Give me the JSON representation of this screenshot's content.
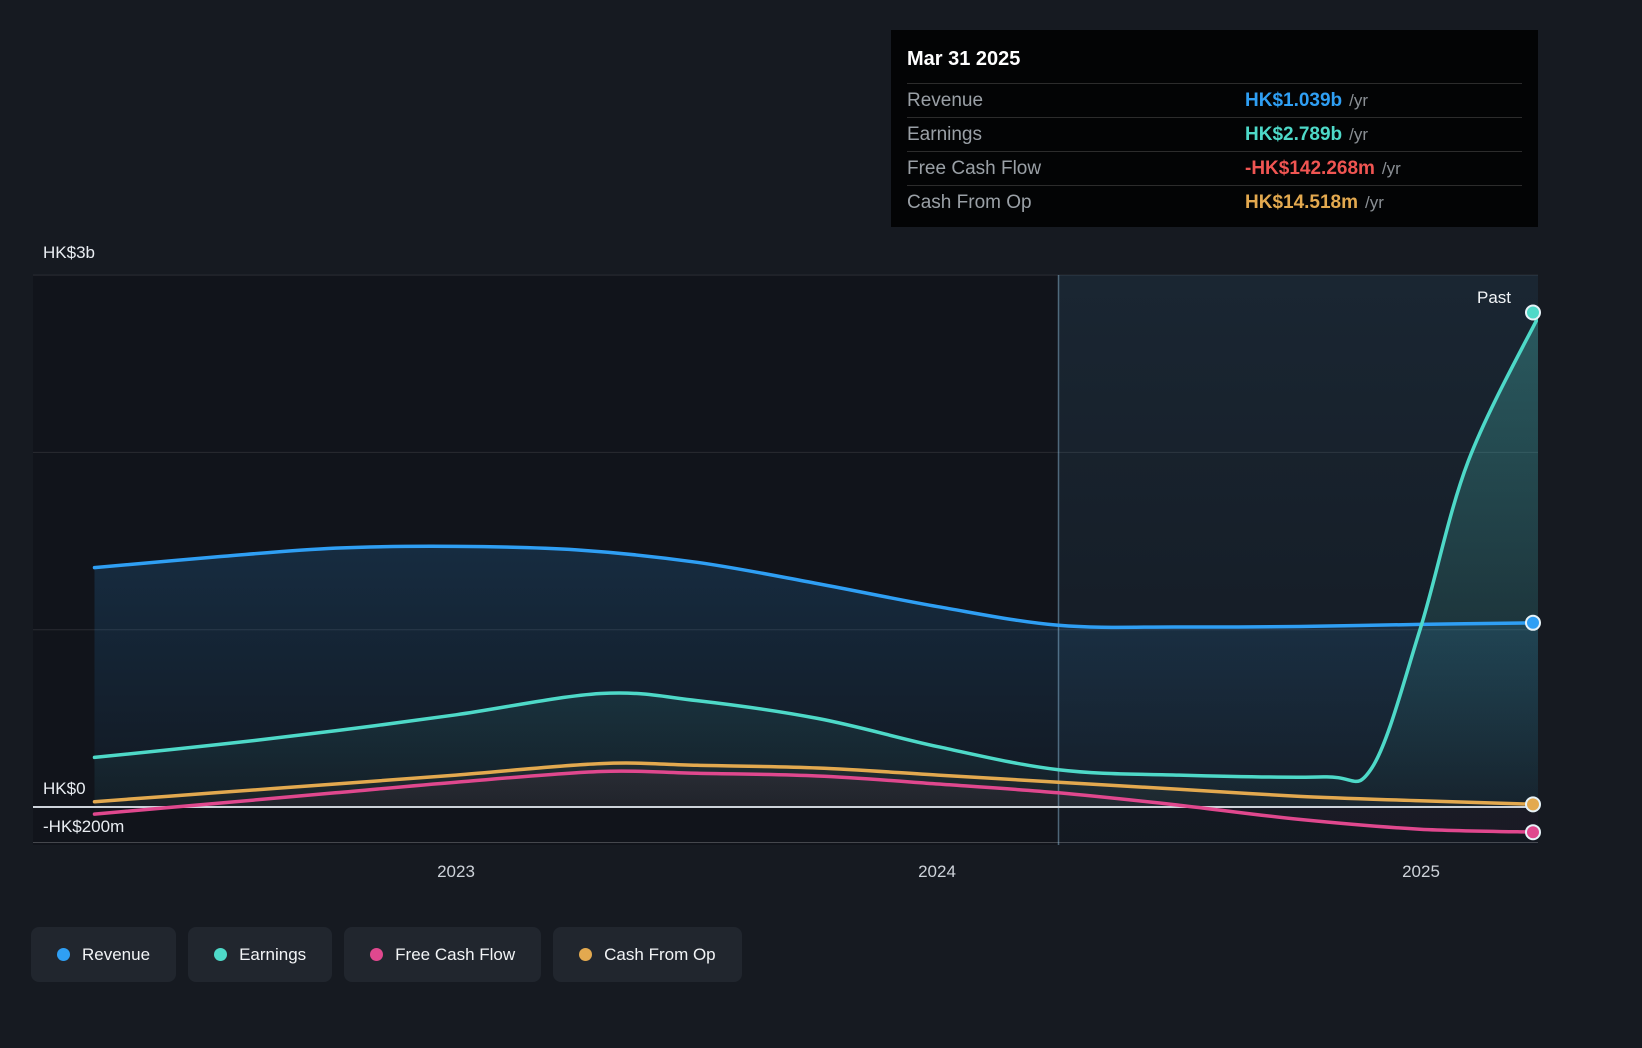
{
  "tooltip": {
    "title": "Mar 31 2025",
    "rows": [
      {
        "label": "Revenue",
        "value": "HK$1.039b",
        "unit": "/yr",
        "color": "#2f9ff4"
      },
      {
        "label": "Earnings",
        "value": "HK$2.789b",
        "unit": "/yr",
        "color": "#4ed9c8"
      },
      {
        "label": "Free Cash Flow",
        "value": "-HK$142.268m",
        "unit": "/yr",
        "color": "#f05552"
      },
      {
        "label": "Cash From Op",
        "value": "HK$14.518m",
        "unit": "/yr",
        "color": "#e3a94f"
      }
    ]
  },
  "axis": {
    "y_top": "HK$3b",
    "y_zero": "HK$0",
    "y_neg": "-HK$200m",
    "x_ticks": [
      "2023",
      "2024",
      "2025"
    ],
    "past_label": "Past"
  },
  "legend": [
    {
      "label": "Revenue",
      "color": "#2f9ff4"
    },
    {
      "label": "Earnings",
      "color": "#4ed9c8"
    },
    {
      "label": "Free Cash Flow",
      "color": "#e0488e"
    },
    {
      "label": "Cash From Op",
      "color": "#e3a94f"
    }
  ],
  "chart_data": {
    "type": "area",
    "title": "Past earnings and revenue growth (HK$, billions)",
    "x_unit": "decimal_year",
    "x_range": [
      2022.25,
      2025.25
    ],
    "ylim": [
      -0.25,
      3.0
    ],
    "y_gridlines": [
      3,
      2,
      1,
      0,
      -0.2
    ],
    "past_divider_x": 2024.25,
    "grid": true,
    "legend_position": "bottom",
    "series": [
      {
        "name": "Revenue",
        "color": "#2f9ff4",
        "points": [
          [
            2022.25,
            1.35
          ],
          [
            2022.5,
            1.41
          ],
          [
            2022.75,
            1.46
          ],
          [
            2023.0,
            1.47
          ],
          [
            2023.25,
            1.45
          ],
          [
            2023.5,
            1.38
          ],
          [
            2023.75,
            1.26
          ],
          [
            2024.0,
            1.13
          ],
          [
            2024.25,
            1.025
          ],
          [
            2024.5,
            1.015
          ],
          [
            2024.75,
            1.018
          ],
          [
            2025.0,
            1.03
          ],
          [
            2025.25,
            1.039
          ]
        ]
      },
      {
        "name": "Earnings",
        "color": "#4ed9c8",
        "points": [
          [
            2022.25,
            0.28
          ],
          [
            2022.5,
            0.35
          ],
          [
            2022.75,
            0.43
          ],
          [
            2023.0,
            0.52
          ],
          [
            2023.3,
            0.64
          ],
          [
            2023.5,
            0.6
          ],
          [
            2023.75,
            0.5
          ],
          [
            2024.0,
            0.34
          ],
          [
            2024.25,
            0.21
          ],
          [
            2024.5,
            0.18
          ],
          [
            2024.8,
            0.17
          ],
          [
            2024.9,
            0.22
          ],
          [
            2025.0,
            1.0
          ],
          [
            2025.1,
            1.95
          ],
          [
            2025.25,
            2.789
          ]
        ]
      },
      {
        "name": "Cash From Op",
        "color": "#e3a94f",
        "points": [
          [
            2022.25,
            0.03
          ],
          [
            2022.5,
            0.08
          ],
          [
            2022.75,
            0.13
          ],
          [
            2023.0,
            0.18
          ],
          [
            2023.3,
            0.245
          ],
          [
            2023.5,
            0.235
          ],
          [
            2023.75,
            0.22
          ],
          [
            2024.0,
            0.18
          ],
          [
            2024.25,
            0.14
          ],
          [
            2024.5,
            0.1
          ],
          [
            2024.75,
            0.06
          ],
          [
            2025.0,
            0.035
          ],
          [
            2025.25,
            0.0145
          ]
        ]
      },
      {
        "name": "Free Cash Flow",
        "color": "#e0488e",
        "points": [
          [
            2022.25,
            -0.04
          ],
          [
            2022.5,
            0.02
          ],
          [
            2022.75,
            0.08
          ],
          [
            2023.0,
            0.14
          ],
          [
            2023.3,
            0.2
          ],
          [
            2023.5,
            0.19
          ],
          [
            2023.75,
            0.175
          ],
          [
            2024.0,
            0.13
          ],
          [
            2024.25,
            0.08
          ],
          [
            2024.5,
            0.01
          ],
          [
            2024.75,
            -0.07
          ],
          [
            2025.0,
            -0.125
          ],
          [
            2025.25,
            -0.142
          ]
        ]
      }
    ]
  }
}
